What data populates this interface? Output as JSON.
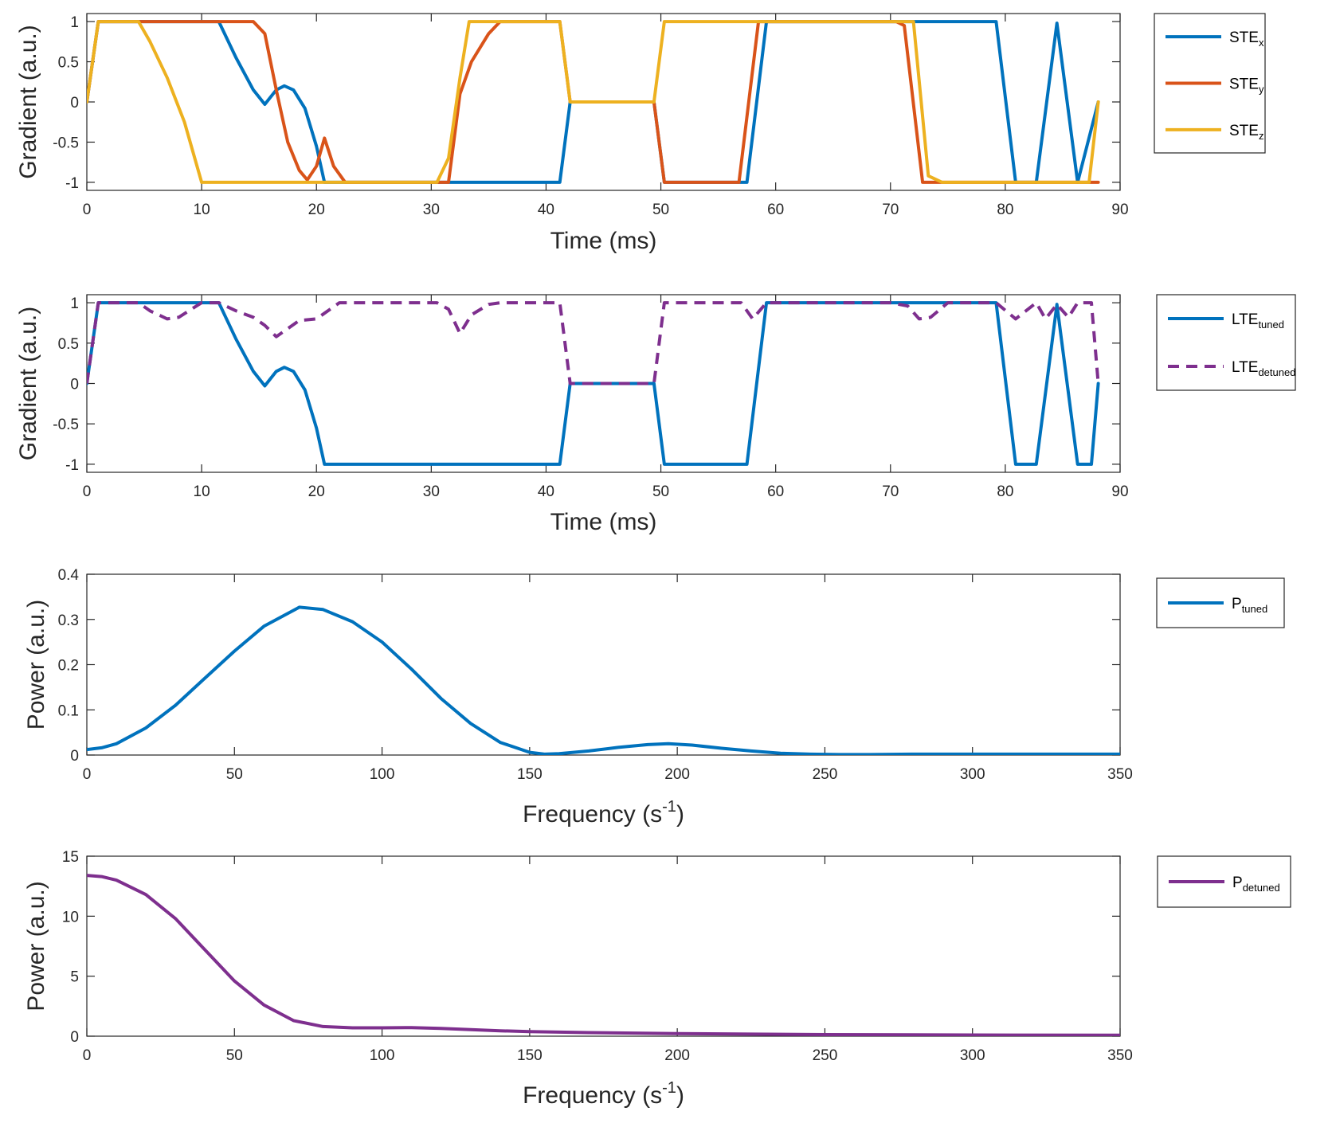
{
  "colors": {
    "blue": "#0072BD",
    "orange": "#D95319",
    "yellow": "#EDB120",
    "purple": "#7E2F8E"
  },
  "chart_data": [
    {
      "id": "ste",
      "type": "line",
      "xlabel": "Time (ms)",
      "ylabel": "Gradient (a.u.)",
      "xlim": [
        0,
        90
      ],
      "ylim": [
        -1.1,
        1.1
      ],
      "xticks": [
        0,
        10,
        20,
        30,
        40,
        50,
        60,
        70,
        80,
        90
      ],
      "yticks": [
        -1,
        -0.5,
        0,
        0.5,
        1
      ],
      "ytick_labels": [
        "-1",
        "-0.5",
        "0",
        "0.5",
        "1"
      ],
      "series": [
        {
          "name": "STEx",
          "label_base": "STE",
          "label_sub": "x",
          "color": "#0072BD",
          "dash": false,
          "x": [
            0,
            1,
            11.5,
            13,
            14.5,
            15.5,
            16.5,
            17.2,
            18,
            19,
            20,
            20.7,
            41.2,
            42.1,
            49.4,
            50.3,
            57.5,
            59.2,
            79.2,
            80.9,
            82.7,
            84.5,
            86.3,
            88.1
          ],
          "y": [
            0,
            1,
            1,
            0.55,
            0.15,
            -0.03,
            0.15,
            0.2,
            0.15,
            -0.08,
            -0.55,
            -1,
            -1,
            0,
            0,
            -1,
            -1,
            1,
            1,
            -1,
            -1,
            0.98,
            -1,
            0
          ]
        },
        {
          "name": "STEy",
          "label_base": "STE",
          "label_sub": "y",
          "color": "#D95319",
          "dash": false,
          "x": [
            0,
            1,
            14.5,
            15.5,
            16.5,
            17.5,
            18.5,
            19.2,
            20,
            20.7,
            21.5,
            22.5,
            31.5,
            32.5,
            33.5,
            35,
            36,
            41.2,
            42.1,
            49.4,
            50.3,
            56.8,
            58.5,
            70.5,
            71.2,
            72.8,
            88.1
          ],
          "y": [
            0,
            1,
            1,
            0.85,
            0.15,
            -0.5,
            -0.85,
            -0.97,
            -0.8,
            -0.45,
            -0.8,
            -1,
            -1,
            0.1,
            0.5,
            0.85,
            1,
            1,
            0,
            0,
            -1,
            -1,
            1,
            1,
            0.95,
            -1,
            -1
          ]
        },
        {
          "name": "STEz",
          "label_base": "STE",
          "label_sub": "z",
          "color": "#EDB120",
          "dash": false,
          "x": [
            0,
            1,
            4.5,
            5.5,
            7,
            8.5,
            10,
            30.5,
            31.5,
            32.5,
            33.3,
            41.2,
            42.1,
            49.4,
            50.3,
            72,
            73.3,
            74.5,
            87.3,
            88.1
          ],
          "y": [
            0,
            1,
            1,
            0.75,
            0.3,
            -0.25,
            -1,
            -1,
            -0.7,
            0.3,
            1,
            1,
            0,
            0,
            1,
            1,
            -0.92,
            -1,
            -1,
            0
          ]
        }
      ]
    },
    {
      "id": "lte",
      "type": "line",
      "xlabel": "Time (ms)",
      "ylabel": "Gradient (a.u.)",
      "xlim": [
        0,
        90
      ],
      "ylim": [
        -1.1,
        1.1
      ],
      "xticks": [
        0,
        10,
        20,
        30,
        40,
        50,
        60,
        70,
        80,
        90
      ],
      "yticks": [
        -1,
        -0.5,
        0,
        0.5,
        1
      ],
      "ytick_labels": [
        "-1",
        "-0.5",
        "0",
        "0.5",
        "1"
      ],
      "series": [
        {
          "name": "LTEtuned",
          "label_base": "LTE",
          "label_sub": "tuned",
          "color": "#0072BD",
          "dash": false,
          "x": [
            0,
            1,
            11.5,
            13,
            14.5,
            15.5,
            16.5,
            17.2,
            18,
            19,
            20,
            20.7,
            41.2,
            42.1,
            49.4,
            50.3,
            57.5,
            59.2,
            79.2,
            80.9,
            82.7,
            84.5,
            86.3,
            87.5,
            88.1
          ],
          "y": [
            0,
            1,
            1,
            0.55,
            0.15,
            -0.03,
            0.15,
            0.2,
            0.15,
            -0.08,
            -0.55,
            -1,
            -1,
            0,
            0,
            -1,
            -1,
            1,
            1,
            -1,
            -1,
            0.98,
            -1,
            -1,
            0
          ]
        },
        {
          "name": "LTEdetuned",
          "label_base": "LTE",
          "label_sub": "detuned",
          "color": "#7E2F8E",
          "dash": true,
          "x": [
            0,
            1,
            4.5,
            5.5,
            7,
            8,
            10,
            11.5,
            13,
            14.5,
            15.5,
            16.5,
            17.5,
            18.5,
            20,
            22,
            30.5,
            31.5,
            32.5,
            33.5,
            35,
            36,
            41.2,
            42.1,
            49.4,
            50.3,
            57,
            58,
            59.2,
            70,
            71.5,
            72.5,
            73.5,
            75,
            79.2,
            80.9,
            82.7,
            83.5,
            84.5,
            85.5,
            86.3,
            87.5,
            88.1
          ],
          "y": [
            0,
            1,
            1,
            0.9,
            0.8,
            0.82,
            1,
            1,
            0.9,
            0.82,
            0.72,
            0.58,
            0.68,
            0.78,
            0.8,
            1,
            1,
            0.92,
            0.62,
            0.85,
            0.98,
            1,
            1,
            0,
            0,
            1,
            1,
            0.8,
            1,
            1,
            0.96,
            0.8,
            0.82,
            1,
            1,
            0.8,
            1,
            0.8,
            0.98,
            0.82,
            1,
            1,
            0
          ]
        }
      ]
    },
    {
      "id": "ptuned",
      "type": "line",
      "xlabel": "Frequency (s",
      "xlabel_sup": "-1",
      "xlabel_close": ")",
      "ylabel": "Power (a.u.)",
      "xlim": [
        0,
        350
      ],
      "ylim": [
        0,
        0.4
      ],
      "xticks": [
        0,
        50,
        100,
        150,
        200,
        250,
        300,
        350
      ],
      "yticks": [
        0,
        0.1,
        0.2,
        0.3,
        0.4
      ],
      "ytick_labels": [
        "0",
        "0.1",
        "0.2",
        "0.3",
        "0.4"
      ],
      "series": [
        {
          "name": "Ptuned",
          "label_base": "P",
          "label_sub": "tuned",
          "color": "#0072BD",
          "dash": false,
          "x": [
            0,
            5,
            10,
            20,
            30,
            40,
            50,
            60,
            70,
            72,
            80,
            90,
            100,
            110,
            120,
            130,
            140,
            150,
            155,
            160,
            170,
            180,
            190,
            197,
            205,
            215,
            225,
            235,
            245,
            255,
            265,
            280,
            300,
            320,
            350
          ],
          "y": [
            0.012,
            0.016,
            0.025,
            0.06,
            0.11,
            0.17,
            0.23,
            0.285,
            0.32,
            0.327,
            0.322,
            0.295,
            0.25,
            0.19,
            0.125,
            0.07,
            0.028,
            0.006,
            0.002,
            0.003,
            0.009,
            0.017,
            0.023,
            0.025,
            0.022,
            0.015,
            0.009,
            0.004,
            0.002,
            0.001,
            0.001,
            0.002,
            0.002,
            0.002,
            0.002
          ]
        }
      ]
    },
    {
      "id": "pdetuned",
      "type": "line",
      "xlabel": "Frequency (s",
      "xlabel_sup": "-1",
      "xlabel_close": ")",
      "ylabel": "Power (a.u.)",
      "xlim": [
        0,
        350
      ],
      "ylim": [
        0,
        15
      ],
      "xticks": [
        0,
        50,
        100,
        150,
        200,
        250,
        300,
        350
      ],
      "yticks": [
        0,
        5,
        10,
        15
      ],
      "ytick_labels": [
        "0",
        "5",
        "10",
        "15"
      ],
      "series": [
        {
          "name": "Pdetuned",
          "label_base": "P",
          "label_sub": "detuned",
          "color": "#7E2F8E",
          "dash": false,
          "x": [
            0,
            5,
            10,
            20,
            30,
            40,
            50,
            60,
            70,
            80,
            90,
            100,
            110,
            120,
            130,
            140,
            150,
            170,
            200,
            250,
            300,
            350
          ],
          "y": [
            13.4,
            13.3,
            13.0,
            11.8,
            9.8,
            7.2,
            4.6,
            2.6,
            1.3,
            0.8,
            0.7,
            0.7,
            0.72,
            0.65,
            0.55,
            0.45,
            0.38,
            0.3,
            0.22,
            0.13,
            0.1,
            0.08
          ]
        }
      ]
    }
  ]
}
